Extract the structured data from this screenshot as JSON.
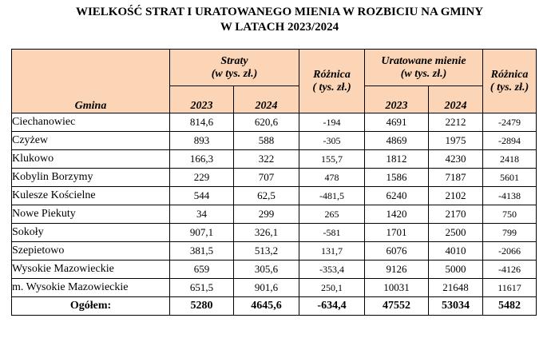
{
  "title_line1": "WIELKOŚĆ STRAT I URATOWANEGO MIENIA W ROZBICIU NA GMINY",
  "title_line2": "W LATACH 2023/2024",
  "headers": {
    "gmina": "Gmina",
    "straty_line1": "Straty",
    "straty_line2": "(w tys. zł.)",
    "roznica_line1": "Różnica",
    "roznica_line2": "( tys. zł.)",
    "uratowane_line1": "Uratowane mienie",
    "uratowane_line2": "(w tys. zł.)",
    "roznica2_line1": "Różnica",
    "roznica2_line2": "( tys. zł.)",
    "y2023": "2023",
    "y2024": "2024",
    "y2023b": "2023",
    "y2024b": "2024"
  },
  "rows": [
    [
      "Ciechanowiec",
      "814,6",
      "620,6",
      "-194",
      "4691",
      "2212",
      "-2479"
    ],
    [
      "Czyżew",
      "893",
      "588",
      "-305",
      "4869",
      "1975",
      "-2894"
    ],
    [
      "Klukowo",
      "166,3",
      "322",
      "155,7",
      "1812",
      "4230",
      "2418"
    ],
    [
      "Kobylin Borzymy",
      "229",
      "707",
      "478",
      "1586",
      "7187",
      "5601"
    ],
    [
      "Kulesze Kościelne",
      "544",
      "62,5",
      "-481,5",
      "6240",
      "2102",
      "-4138"
    ],
    [
      "Nowe Piekuty",
      "34",
      "299",
      "265",
      "1420",
      "2170",
      "750"
    ],
    [
      "Sokoły",
      "907,1",
      "326,1",
      "-581",
      "1701",
      "2500",
      "799"
    ],
    [
      "Szepietowo",
      "381,5",
      "513,2",
      "131,7",
      "6076",
      "4010",
      "-2066"
    ],
    [
      "Wysokie Mazowieckie",
      "659",
      "305,6",
      "-353,4",
      "9126",
      "5000",
      "-4126"
    ],
    [
      "m. Wysokie Mazowieckie",
      "651,5",
      "901,6",
      "250,1",
      "10031",
      "21648",
      "11617"
    ]
  ],
  "total": [
    "Ogółem:",
    "5280",
    "4645,6",
    "-634,4",
    "47552",
    "53034",
    "5482"
  ]
}
